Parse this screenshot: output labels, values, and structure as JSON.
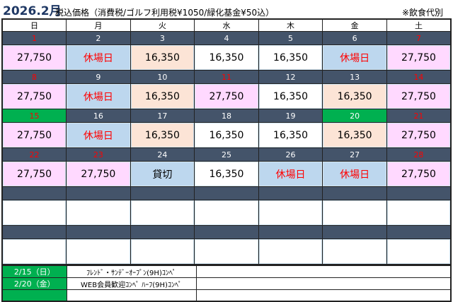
{
  "header": {
    "title": "2026.2月",
    "subtitle": "税込価格（消費税/ゴルフ利用税¥1050/緑化基金¥50込）",
    "note": "※飲食代別"
  },
  "colors": {
    "pink": "#ffd9ff",
    "blue": "#bdd7ee",
    "peach": "#fce4d6",
    "white": "#ffffff",
    "green": "#00b050",
    "dark": "#44546a"
  },
  "weekdays": [
    "日",
    "月",
    "火",
    "水",
    "木",
    "金",
    "土"
  ],
  "weeks": [
    [
      {
        "d": "1",
        "red": true,
        "p": "27,750",
        "c": "pink"
      },
      {
        "d": "2",
        "p": "休場日",
        "c": "blue",
        "pr": true
      },
      {
        "d": "3",
        "p": "16,350",
        "c": "peach"
      },
      {
        "d": "4",
        "p": "16,350",
        "c": "white"
      },
      {
        "d": "5",
        "p": "16,350",
        "c": "white"
      },
      {
        "d": "6",
        "p": "休場日",
        "c": "blue",
        "pr": true
      },
      {
        "d": "7",
        "red": true,
        "p": "27,750",
        "c": "pink"
      }
    ],
    [
      {
        "d": "8",
        "red": true,
        "p": "27,750",
        "c": "pink"
      },
      {
        "d": "9",
        "p": "休場日",
        "c": "blue",
        "pr": true
      },
      {
        "d": "10",
        "p": "16,350",
        "c": "peach"
      },
      {
        "d": "11",
        "red": true,
        "p": "27,750",
        "c": "pink"
      },
      {
        "d": "12",
        "p": "16,350",
        "c": "white"
      },
      {
        "d": "13",
        "p": "16,350",
        "c": "peach"
      },
      {
        "d": "14",
        "red": true,
        "p": "27,750",
        "c": "pink"
      }
    ],
    [
      {
        "d": "15",
        "red": true,
        "g": true,
        "p": "27,750",
        "c": "pink"
      },
      {
        "d": "16",
        "p": "休場日",
        "c": "blue",
        "pr": true
      },
      {
        "d": "17",
        "p": "16,350",
        "c": "peach"
      },
      {
        "d": "18",
        "p": "16,350",
        "c": "white"
      },
      {
        "d": "19",
        "p": "16,350",
        "c": "white"
      },
      {
        "d": "20",
        "g": true,
        "p": "16,350",
        "c": "peach"
      },
      {
        "d": "21",
        "red": true,
        "p": "27,750",
        "c": "pink"
      }
    ],
    [
      {
        "d": "22",
        "red": true,
        "p": "27,750",
        "c": "pink"
      },
      {
        "d": "23",
        "red": true,
        "p": "27,750",
        "c": "pink"
      },
      {
        "d": "24",
        "p": "貸切",
        "c": "blue"
      },
      {
        "d": "25",
        "p": "16,350",
        "c": "white"
      },
      {
        "d": "26",
        "p": "休場日",
        "c": "blue",
        "pr": true
      },
      {
        "d": "27",
        "p": "休場日",
        "c": "blue",
        "pr": true
      },
      {
        "d": "28",
        "red": true,
        "p": "27,750",
        "c": "pink"
      }
    ],
    [
      {
        "d": "",
        "p": "",
        "c": "white"
      },
      {
        "d": "",
        "p": "",
        "c": "white"
      },
      {
        "d": "",
        "p": "",
        "c": "white"
      },
      {
        "d": "",
        "p": "",
        "c": "white"
      },
      {
        "d": "",
        "p": "",
        "c": "white"
      },
      {
        "d": "",
        "p": "",
        "c": "white"
      },
      {
        "d": "",
        "p": "",
        "c": "white"
      }
    ],
    [
      {
        "d": "",
        "p": "",
        "c": "white"
      },
      {
        "d": "",
        "p": "",
        "c": "white"
      },
      {
        "d": "",
        "p": "",
        "c": "white"
      },
      {
        "d": "",
        "p": "",
        "c": "white"
      },
      {
        "d": "",
        "p": "",
        "c": "white"
      },
      {
        "d": "",
        "p": "",
        "c": "white"
      },
      {
        "d": "",
        "p": "",
        "c": "white"
      }
    ]
  ],
  "events": [
    {
      "date": "2/15（日）",
      "name": "ﾌﾚﾝﾄﾞ・ｻﾝﾃﾞｰｵｰﾌﾟﾝ(9H)ｺﾝﾍﾟ",
      "note": ""
    },
    {
      "date": "2/20（金）",
      "name": "WEB会員歓迎ｺﾝﾍﾟ ﾊｰﾌ(9H)ｺﾝﾍﾟ",
      "note": ""
    },
    {
      "date": "",
      "name": "",
      "note": ""
    }
  ]
}
